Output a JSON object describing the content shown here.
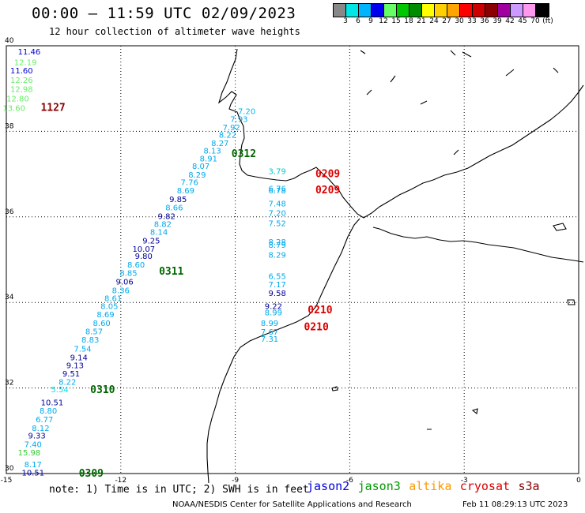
{
  "header": {
    "title": "00:00 – 11:59 UTC 02/09/2023",
    "subtitle": "12 hour collection of altimeter wave heights"
  },
  "colorbar": {
    "colors": [
      "#888888",
      "#00e5e5",
      "#00b4ff",
      "#0000ee",
      "#66ff66",
      "#00c800",
      "#008c00",
      "#ffff00",
      "#ffd000",
      "#ffa500",
      "#ff0000",
      "#cc0000",
      "#8b0000",
      "#a000a0",
      "#cc99ff",
      "#ff99ee",
      "#000000"
    ],
    "labels": [
      "3",
      "6",
      "9",
      "12",
      "15",
      "18",
      "21",
      "24",
      "27",
      "30",
      "33",
      "36",
      "39",
      "42",
      "45",
      "70",
      "(ft)"
    ]
  },
  "map": {
    "lon_ticks": [
      "-15",
      "-12",
      "-9",
      "-6",
      "-3",
      "0"
    ],
    "lat_ticks": [
      "40",
      "38",
      "36",
      "34",
      "32",
      "30"
    ],
    "swh_points": [
      {
        "lon": -14.4,
        "lat": 39.8,
        "v": "11.46",
        "c": "#0000cc"
      },
      {
        "lon": -14.5,
        "lat": 39.55,
        "v": "12.19",
        "c": "#66ee66"
      },
      {
        "lon": -14.6,
        "lat": 39.35,
        "v": "11.60",
        "c": "#0000cc"
      },
      {
        "lon": -14.6,
        "lat": 39.13,
        "v": "12.26",
        "c": "#66ee66"
      },
      {
        "lon": -14.6,
        "lat": 38.92,
        "v": "12.98",
        "c": "#66ee66"
      },
      {
        "lon": -14.7,
        "lat": 38.7,
        "v": "12.80",
        "c": "#66ee66"
      },
      {
        "lon": -14.8,
        "lat": 38.48,
        "v": "13.60",
        "c": "#66ee66"
      },
      {
        "lon": -8.7,
        "lat": 38.4,
        "v": "7.20",
        "c": "#00bbee"
      },
      {
        "lon": -8.9,
        "lat": 38.22,
        "v": "7.93",
        "c": "#00aaee"
      },
      {
        "lon": -9.1,
        "lat": 38.03,
        "v": "7.92",
        "c": "#00aaee"
      },
      {
        "lon": -9.2,
        "lat": 37.85,
        "v": "8.22",
        "c": "#00aaee"
      },
      {
        "lon": -9.4,
        "lat": 37.66,
        "v": "8.27",
        "c": "#00aaee"
      },
      {
        "lon": -9.6,
        "lat": 37.48,
        "v": "8.13",
        "c": "#00aaee"
      },
      {
        "lon": -9.7,
        "lat": 37.3,
        "v": "8.91",
        "c": "#00aaee"
      },
      {
        "lon": -9.9,
        "lat": 37.12,
        "v": "8.07",
        "c": "#00aaee"
      },
      {
        "lon": -10.0,
        "lat": 36.92,
        "v": "8.29",
        "c": "#00aaee"
      },
      {
        "lon": -10.2,
        "lat": 36.74,
        "v": "7.76",
        "c": "#00aaee"
      },
      {
        "lon": -10.3,
        "lat": 36.55,
        "v": "8.69",
        "c": "#00aaee"
      },
      {
        "lon": -10.5,
        "lat": 36.35,
        "v": "9.85",
        "c": "#000099"
      },
      {
        "lon": -10.6,
        "lat": 36.15,
        "v": "8.66",
        "c": "#00aaee"
      },
      {
        "lon": -10.8,
        "lat": 35.95,
        "v": "9.82",
        "c": "#000099"
      },
      {
        "lon": -10.9,
        "lat": 35.77,
        "v": "8.82",
        "c": "#00aaee"
      },
      {
        "lon": -11.0,
        "lat": 35.58,
        "v": "8.14",
        "c": "#00aaee"
      },
      {
        "lon": -11.2,
        "lat": 35.38,
        "v": "9.25",
        "c": "#000099"
      },
      {
        "lon": -11.4,
        "lat": 35.18,
        "v": "10.07",
        "c": "#000099"
      },
      {
        "lon": -11.4,
        "lat": 35.02,
        "v": "9.80",
        "c": "#000099"
      },
      {
        "lon": -11.6,
        "lat": 34.82,
        "v": "8.60",
        "c": "#00aaee"
      },
      {
        "lon": -11.8,
        "lat": 34.62,
        "v": "8.85",
        "c": "#00aaee"
      },
      {
        "lon": -11.9,
        "lat": 34.42,
        "v": "9.06",
        "c": "#000099"
      },
      {
        "lon": -12.0,
        "lat": 34.22,
        "v": "8.36",
        "c": "#00aaee"
      },
      {
        "lon": -12.2,
        "lat": 34.03,
        "v": "8.61",
        "c": "#00aaee"
      },
      {
        "lon": -12.3,
        "lat": 33.85,
        "v": "8.05",
        "c": "#00aaee"
      },
      {
        "lon": -12.4,
        "lat": 33.65,
        "v": "8.69",
        "c": "#00aaee"
      },
      {
        "lon": -12.5,
        "lat": 33.45,
        "v": "8.60",
        "c": "#00aaee"
      },
      {
        "lon": -12.7,
        "lat": 33.26,
        "v": "8.57",
        "c": "#00aaee"
      },
      {
        "lon": -12.8,
        "lat": 33.06,
        "v": "8.83",
        "c": "#00aaee"
      },
      {
        "lon": -13.0,
        "lat": 32.85,
        "v": "7.54",
        "c": "#00aaee"
      },
      {
        "lon": -13.1,
        "lat": 32.65,
        "v": "9.14",
        "c": "#000099"
      },
      {
        "lon": -13.2,
        "lat": 32.46,
        "v": "9.13",
        "c": "#000099"
      },
      {
        "lon": -13.3,
        "lat": 32.27,
        "v": "9.51",
        "c": "#000099"
      },
      {
        "lon": -13.4,
        "lat": 32.08,
        "v": "8.22",
        "c": "#00aaee"
      },
      {
        "lon": -13.6,
        "lat": 31.9,
        "v": "5.54",
        "c": "#00dddd"
      },
      {
        "lon": -13.8,
        "lat": 31.6,
        "v": "10.51",
        "c": "#000099"
      },
      {
        "lon": -13.9,
        "lat": 31.4,
        "v": "8.80",
        "c": "#00aaee"
      },
      {
        "lon": -14.0,
        "lat": 31.2,
        "v": "6.77",
        "c": "#00aaee"
      },
      {
        "lon": -14.1,
        "lat": 31.0,
        "v": "8.12",
        "c": "#00aaee"
      },
      {
        "lon": -14.2,
        "lat": 30.82,
        "v": "9.33",
        "c": "#000099"
      },
      {
        "lon": -14.3,
        "lat": 30.62,
        "v": "7.40",
        "c": "#00aaee"
      },
      {
        "lon": -14.4,
        "lat": 30.42,
        "v": "15.98",
        "c": "#33cc33"
      },
      {
        "lon": -14.3,
        "lat": 30.15,
        "v": "8.17",
        "c": "#00aaee"
      },
      {
        "lon": -14.3,
        "lat": 29.95,
        "v": "10.51",
        "c": "#000099"
      },
      {
        "lon": -7.9,
        "lat": 37.0,
        "v": "3.79",
        "c": "#00cccc"
      },
      {
        "lon": -7.9,
        "lat": 36.6,
        "v": "6.76",
        "c": "#00aaee"
      },
      {
        "lon": -7.9,
        "lat": 36.55,
        "v": "6.78",
        "c": "#00aaee"
      },
      {
        "lon": -7.9,
        "lat": 36.25,
        "v": "7.48",
        "c": "#00aaee"
      },
      {
        "lon": -7.9,
        "lat": 36.02,
        "v": "7.20",
        "c": "#00aaee"
      },
      {
        "lon": -7.9,
        "lat": 35.78,
        "v": "7.52",
        "c": "#00aaee"
      },
      {
        "lon": -7.9,
        "lat": 35.35,
        "v": "8.28",
        "c": "#00aaee"
      },
      {
        "lon": -7.9,
        "lat": 35.28,
        "v": "8.79",
        "c": "#00aaee"
      },
      {
        "lon": -7.9,
        "lat": 35.05,
        "v": "8.29",
        "c": "#00aaee"
      },
      {
        "lon": -7.9,
        "lat": 34.55,
        "v": "6.55",
        "c": "#00aaee"
      },
      {
        "lon": -7.9,
        "lat": 34.35,
        "v": "7.17",
        "c": "#00aaee"
      },
      {
        "lon": -7.9,
        "lat": 34.15,
        "v": "9.58",
        "c": "#000099"
      },
      {
        "lon": -8.0,
        "lat": 33.85,
        "v": "9.22",
        "c": "#000099"
      },
      {
        "lon": -8.0,
        "lat": 33.7,
        "v": "8.99",
        "c": "#00aaee"
      },
      {
        "lon": -8.1,
        "lat": 33.45,
        "v": "8.99",
        "c": "#00aaee"
      },
      {
        "lon": -8.1,
        "lat": 33.25,
        "v": "7.67",
        "c": "#00aaee"
      },
      {
        "lon": -8.1,
        "lat": 33.08,
        "v": "7.31",
        "c": "#00aaee"
      }
    ],
    "time_labels": [
      {
        "lon": -14.1,
        "lat": 38.48,
        "t": "1127",
        "c": "#8b0000"
      },
      {
        "lon": -9.1,
        "lat": 37.4,
        "t": "0312",
        "c": "#006600"
      },
      {
        "lon": -6.9,
        "lat": 36.93,
        "t": "0209",
        "c": "#dd0000"
      },
      {
        "lon": -6.9,
        "lat": 36.55,
        "t": "0209",
        "c": "#dd0000"
      },
      {
        "lon": -11.0,
        "lat": 34.65,
        "t": "0311",
        "c": "#006600"
      },
      {
        "lon": -7.1,
        "lat": 33.75,
        "t": "0210",
        "c": "#dd0000"
      },
      {
        "lon": -7.2,
        "lat": 33.35,
        "t": "0210",
        "c": "#dd0000"
      },
      {
        "lon": -12.8,
        "lat": 31.88,
        "t": "0310",
        "c": "#006600"
      },
      {
        "lon": -13.1,
        "lat": 29.93,
        "t": "0309",
        "c": "#006600"
      }
    ]
  },
  "footer": {
    "note": "note: 1) Time is in UTC; 2) SWH is in feet",
    "legend": [
      {
        "name": "jason2",
        "color": "#0000dd"
      },
      {
        "name": "jason3",
        "color": "#009900"
      },
      {
        "name": "altika",
        "color": "#ff9900"
      },
      {
        "name": "cryosat",
        "color": "#dd0000"
      },
      {
        "name": "s3a",
        "color": "#8b0000"
      }
    ],
    "credit": "NOAA/NESDIS Center for Satellite Applications and Research",
    "timestamp": "Feb 11 08:29:13 UTC 2023"
  }
}
